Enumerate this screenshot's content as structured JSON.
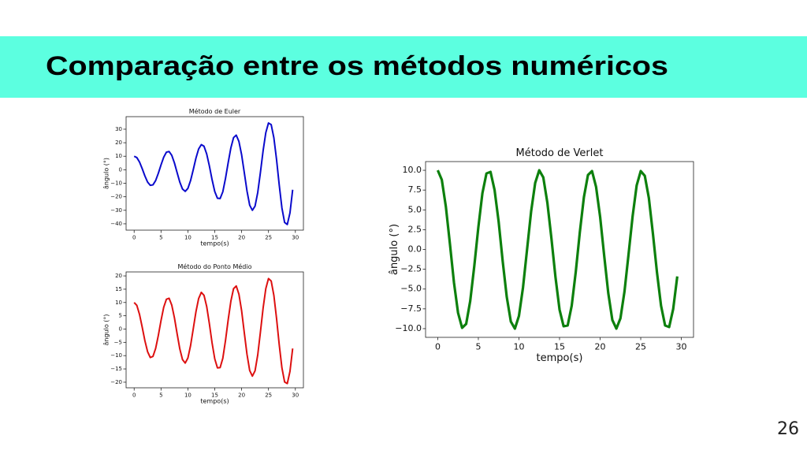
{
  "title": "Comparação entre os métodos numéricos",
  "page_number": "26",
  "chart_data": [
    {
      "type": "line",
      "title": "Método de Euler",
      "x_label": "tempo(s)",
      "y_label": "ângulo (°)",
      "color": "#0a0acc",
      "xlim": [
        -1.5,
        31.5
      ],
      "xticks": [
        0,
        5,
        10,
        15,
        20,
        25,
        30
      ],
      "ylim": [
        -44.7,
        39.3
      ],
      "yticks": [
        {
          "value": -40,
          "label": "−40"
        },
        {
          "value": -30,
          "label": "−30"
        },
        {
          "value": -20,
          "label": "−20"
        },
        {
          "value": -10,
          "label": "−10"
        },
        0,
        10,
        20,
        30
      ],
      "x": [
        0,
        0.5,
        1,
        1.5,
        2,
        2.5,
        3,
        3.5,
        4,
        4.5,
        5,
        5.5,
        6,
        6.5,
        7,
        7.5,
        8,
        8.5,
        9,
        9.5,
        10,
        10.5,
        11,
        11.5,
        12,
        12.5,
        13,
        13.5,
        14,
        14.5,
        15,
        15.5,
        16,
        16.5,
        17,
        17.5,
        18,
        18.5,
        19,
        19.5,
        20,
        20.5,
        21,
        21.5,
        22,
        22.5,
        23,
        23.5,
        24,
        24.5,
        25,
        25.5,
        26,
        26.5,
        27,
        27.5,
        28,
        28.5,
        29,
        29.5
      ],
      "values": [
        10.0,
        9.0,
        5.7,
        0.8,
        -4.6,
        -9.1,
        -11.5,
        -11.2,
        -8.0,
        -2.6,
        3.6,
        9.3,
        13.0,
        13.5,
        10.7,
        5.0,
        -2.2,
        -9.2,
        -14.3,
        -16.0,
        -13.8,
        -8.0,
        0.1,
        8.6,
        15.4,
        18.6,
        17.4,
        11.7,
        2.8,
        -7.3,
        -16.1,
        -21.1,
        -21.3,
        -16.3,
        -6.4,
        5.3,
        16.2,
        23.8,
        25.6,
        20.9,
        11.1,
        -2.2,
        -15.7,
        -26.2,
        -30.0,
        -26.9,
        -16.8,
        -2.0,
        14.1,
        27.4,
        34.6,
        33.4,
        23.7,
        7.6,
        -11.3,
        -28.3,
        -39.0,
        -40.5,
        -31.9,
        -14.8
      ]
    },
    {
      "type": "line",
      "title": "Método do Ponto Médio",
      "x_label": "tempo(s)",
      "y_label": "ângulo (°)",
      "color": "#dd1010",
      "xlim": [
        -1.5,
        31.5
      ],
      "xticks": [
        0,
        5,
        10,
        15,
        20,
        25,
        30
      ],
      "ylim": [
        -22.1,
        21.5
      ],
      "yticks": [
        {
          "value": -20,
          "label": "−20"
        },
        {
          "value": -15,
          "label": "−15"
        },
        {
          "value": -10,
          "label": "−10"
        },
        {
          "value": -5,
          "label": "−5"
        },
        0,
        5,
        10,
        15,
        20
      ],
      "x": [
        0,
        0.5,
        1,
        1.5,
        2,
        2.5,
        3,
        3.5,
        4,
        4.5,
        5,
        5.5,
        6,
        6.5,
        7,
        7.5,
        8,
        8.5,
        9,
        9.5,
        10,
        10.5,
        11,
        11.5,
        12,
        12.5,
        13,
        13.5,
        14,
        14.5,
        15,
        15.5,
        16,
        16.5,
        17,
        17.5,
        18,
        18.5,
        19,
        19.5,
        20,
        20.5,
        21,
        21.5,
        22,
        22.5,
        23,
        23.5,
        24,
        24.5,
        25,
        25.5,
        26,
        26.5,
        27,
        27.5,
        28,
        28.5,
        29,
        29.5
      ],
      "values": [
        10.0,
        8.9,
        5.5,
        0.7,
        -4.4,
        -8.5,
        -10.7,
        -10.3,
        -7.3,
        -2.4,
        3.2,
        8.2,
        11.2,
        11.6,
        9.0,
        4.2,
        -1.8,
        -7.5,
        -11.5,
        -12.8,
        -10.9,
        -6.2,
        0.1,
        6.5,
        11.5,
        13.8,
        12.7,
        8.5,
        2.0,
        -5.2,
        -11.2,
        -14.6,
        -14.5,
        -11.0,
        -4.3,
        3.5,
        10.5,
        15.2,
        16.2,
        13.1,
        6.9,
        -1.4,
        -9.5,
        -15.6,
        -17.7,
        -15.7,
        -9.7,
        -1.1,
        7.9,
        15.2,
        19.0,
        18.1,
        12.7,
        4.0,
        -5.9,
        -14.6,
        -19.9,
        -20.5,
        -15.9,
        -7.3
      ]
    },
    {
      "type": "line",
      "title": "Método de Verlet",
      "x_label": "tempo(s)",
      "y_label": "ângulo (°)",
      "color": "#0d800d",
      "xlim": [
        -1.5,
        31.5
      ],
      "xticks": [
        0,
        5,
        10,
        15,
        20,
        25,
        30
      ],
      "ylim": [
        -11.1,
        11.1
      ],
      "yticks": [
        {
          "value": -10,
          "label": "−10.0"
        },
        {
          "value": -7.5,
          "label": "−7.5"
        },
        {
          "value": -5,
          "label": "−5.0"
        },
        {
          "value": -2.5,
          "label": "−2.5"
        },
        {
          "value": 0,
          "label": "0.0"
        },
        {
          "value": 2.5,
          "label": "2.5"
        },
        {
          "value": 5,
          "label": "5.0"
        },
        {
          "value": 7.5,
          "label": "7.5"
        },
        {
          "value": 10,
          "label": "10.0"
        }
      ],
      "x": [
        0,
        0.5,
        1,
        1.5,
        2,
        2.5,
        3,
        3.5,
        4,
        4.5,
        5,
        5.5,
        6,
        6.5,
        7,
        7.5,
        8,
        8.5,
        9,
        9.5,
        10,
        10.5,
        11,
        11.5,
        12,
        12.5,
        13,
        13.5,
        14,
        14.5,
        15,
        15.5,
        16,
        16.5,
        17,
        17.5,
        18,
        18.5,
        19,
        19.5,
        20,
        20.5,
        21,
        21.5,
        22,
        22.5,
        23,
        23.5,
        24,
        24.5,
        25,
        25.5,
        26,
        26.5,
        27,
        27.5,
        28,
        28.5,
        29,
        29.5
      ],
      "values": [
        10.0,
        8.8,
        5.4,
        0.7,
        -4.2,
        -8.0,
        -9.9,
        -9.4,
        -6.5,
        -2.1,
        2.8,
        7.1,
        9.6,
        9.8,
        7.5,
        3.5,
        -1.5,
        -6.0,
        -9.1,
        -10.0,
        -8.4,
        -4.8,
        0.0,
        4.8,
        8.4,
        10.0,
        9.1,
        5.9,
        1.4,
        -3.5,
        -7.6,
        -9.7,
        -9.6,
        -7.1,
        -2.8,
        2.2,
        6.6,
        9.4,
        9.9,
        7.9,
        4.1,
        -0.8,
        -5.5,
        -8.9,
        -10.0,
        -8.7,
        -5.3,
        -0.6,
        4.2,
        8.1,
        9.9,
        9.3,
        6.5,
        2.0,
        -2.9,
        -7.1,
        -9.6,
        -9.8,
        -7.5,
        -3.4
      ]
    }
  ]
}
